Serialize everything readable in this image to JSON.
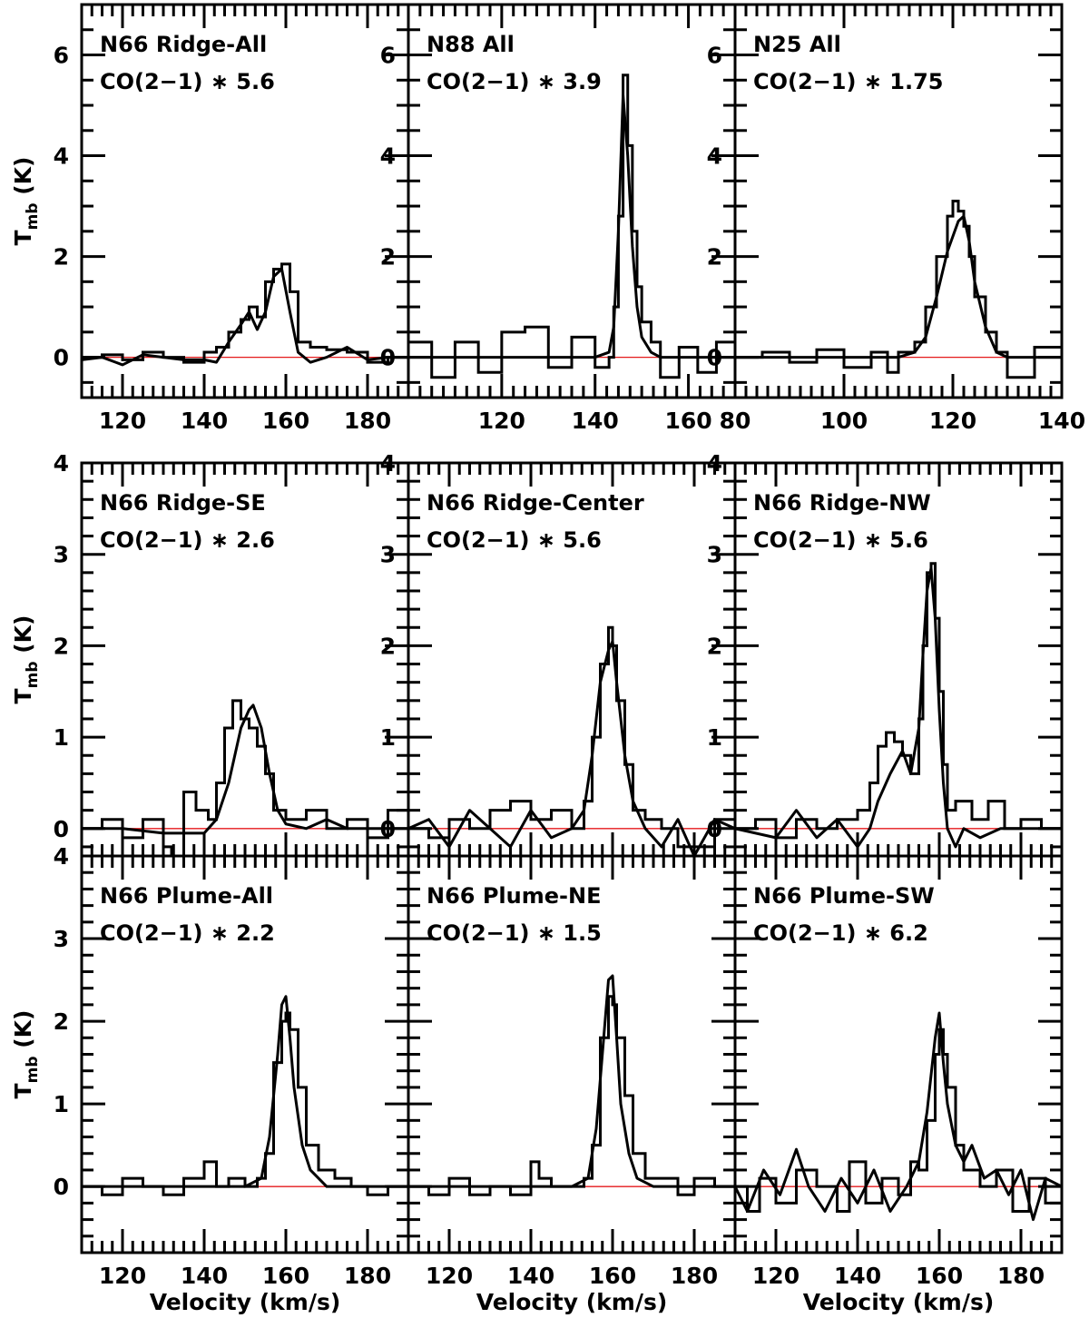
{
  "colors": {
    "spectrum": "#000000",
    "zero_line": "#e41a1c",
    "background": "#ffffff"
  },
  "chart_data": [
    {
      "type": "line",
      "panel": "N66 Ridge-All",
      "title": "N66 Ridge-All",
      "subtitle": "CO(2−1) ∗ 5.6",
      "xlim": [
        110,
        190
      ],
      "ylim": [
        -0.8,
        7.0
      ],
      "xticks": [
        120,
        140,
        160,
        180
      ],
      "yticks": [
        0,
        2,
        4,
        6
      ],
      "xlabel": "",
      "ylabel": "T_mb (K)",
      "series": [
        {
          "style": "histogram",
          "x": [
            110,
            115,
            120,
            125,
            130,
            135,
            140,
            143,
            146,
            149,
            151,
            153,
            155,
            157,
            159,
            161,
            163,
            166,
            170,
            175,
            180,
            185,
            190
          ],
          "values": [
            0.0,
            0.05,
            -0.05,
            0.1,
            0.0,
            -0.1,
            0.1,
            0.2,
            0.5,
            0.75,
            1.0,
            0.8,
            1.5,
            1.75,
            1.85,
            1.3,
            0.3,
            0.2,
            0.15,
            0.1,
            -0.1,
            0.0,
            0.0
          ]
        },
        {
          "style": "smooth",
          "x": [
            110,
            115,
            120,
            125,
            130,
            135,
            140,
            143,
            146,
            149,
            151,
            153,
            155,
            157,
            159,
            161,
            163,
            166,
            170,
            175,
            180,
            185,
            190
          ],
          "values": [
            -0.05,
            0.0,
            -0.15,
            0.05,
            0.0,
            -0.05,
            -0.05,
            -0.1,
            0.3,
            0.65,
            0.9,
            0.55,
            0.9,
            1.6,
            1.75,
            0.9,
            0.1,
            -0.1,
            0.0,
            0.2,
            -0.05,
            0.0,
            0.0
          ]
        }
      ]
    },
    {
      "type": "line",
      "panel": "N88 All",
      "title": "N88 All",
      "subtitle": "CO(2−1) ∗ 3.9",
      "xlim": [
        100,
        170
      ],
      "ylim": [
        -0.8,
        7.0
      ],
      "xticks": [
        120,
        140,
        160
      ],
      "yticks": [
        0,
        2,
        4,
        6
      ],
      "xlabel": "",
      "ylabel": "",
      "series": [
        {
          "style": "histogram",
          "x": [
            100,
            105,
            110,
            115,
            120,
            125,
            130,
            135,
            140,
            143,
            144,
            145,
            146,
            147,
            148,
            149,
            150,
            152,
            154,
            158,
            162,
            166,
            170
          ],
          "values": [
            0.3,
            -0.4,
            0.3,
            -0.3,
            0.5,
            0.6,
            -0.2,
            0.4,
            -0.2,
            0.0,
            1.0,
            2.8,
            5.6,
            4.2,
            2.5,
            1.4,
            0.7,
            0.3,
            -0.4,
            0.2,
            -0.3,
            0.3,
            0.0
          ]
        },
        {
          "style": "smooth",
          "x": [
            100,
            110,
            120,
            130,
            140,
            143,
            144,
            145,
            146,
            147,
            148,
            149,
            150,
            152,
            154,
            160,
            170
          ],
          "values": [
            0.0,
            0.0,
            0.0,
            0.0,
            0.0,
            0.1,
            0.6,
            2.5,
            5.2,
            4.0,
            2.2,
            1.0,
            0.4,
            0.1,
            0.0,
            0.0,
            0.0
          ]
        }
      ]
    },
    {
      "type": "line",
      "panel": "N25 All",
      "title": "N25 All",
      "subtitle": "CO(2−1) ∗ 1.75",
      "xlim": [
        80,
        140
      ],
      "ylim": [
        -0.8,
        7.0
      ],
      "xticks": [
        80,
        100,
        120,
        140
      ],
      "yticks": [
        0,
        2,
        4,
        6
      ],
      "xlabel": "",
      "ylabel": "",
      "series": [
        {
          "style": "histogram",
          "x": [
            80,
            85,
            90,
            95,
            100,
            105,
            108,
            110,
            113,
            115,
            117,
            119,
            120,
            121,
            122,
            123,
            124,
            126,
            128,
            130,
            135,
            140
          ],
          "values": [
            0.0,
            0.1,
            -0.1,
            0.15,
            -0.2,
            0.1,
            -0.3,
            0.1,
            0.3,
            1.0,
            2.0,
            2.8,
            3.1,
            2.9,
            2.6,
            2.0,
            1.2,
            0.5,
            0.1,
            -0.4,
            0.2,
            0.1
          ]
        },
        {
          "style": "smooth",
          "x": [
            80,
            90,
            100,
            110,
            113,
            115,
            117,
            119,
            121,
            122,
            123,
            124,
            126,
            128,
            130,
            135,
            140
          ],
          "values": [
            0.0,
            0.0,
            0.0,
            0.0,
            0.1,
            0.4,
            1.2,
            2.1,
            2.7,
            2.8,
            2.3,
            1.5,
            0.6,
            0.1,
            0.0,
            0.0,
            0.0
          ]
        }
      ]
    },
    {
      "type": "line",
      "panel": "N66 Ridge-SE",
      "title": "N66 Ridge-SE",
      "subtitle": "CO(2−1) ∗ 2.6",
      "xlim": [
        110,
        190
      ],
      "ylim": [
        -0.3,
        4.0
      ],
      "xticks": [],
      "yticks": [
        0,
        1,
        2,
        3,
        4
      ],
      "xlabel": "",
      "ylabel": "T_mb (K)",
      "series": [
        {
          "style": "histogram",
          "x": [
            110,
            115,
            120,
            125,
            130,
            132,
            135,
            138,
            141,
            143,
            145,
            147,
            149,
            151,
            153,
            155,
            157,
            160,
            165,
            170,
            175,
            180,
            185,
            190
          ],
          "values": [
            0.0,
            0.1,
            -0.1,
            0.1,
            -0.2,
            -0.5,
            0.4,
            0.2,
            0.1,
            0.5,
            1.1,
            1.4,
            1.2,
            1.1,
            0.9,
            0.6,
            0.2,
            0.1,
            0.2,
            0.0,
            0.1,
            -0.1,
            0.2,
            0.0
          ]
        },
        {
          "style": "smooth",
          "x": [
            110,
            120,
            130,
            140,
            143,
            146,
            149,
            151,
            152,
            154,
            156,
            158,
            160,
            165,
            170,
            175,
            180,
            185,
            190
          ],
          "values": [
            0.0,
            0.0,
            -0.05,
            -0.05,
            0.1,
            0.5,
            1.1,
            1.3,
            1.35,
            1.1,
            0.6,
            0.2,
            0.05,
            0.0,
            0.1,
            0.0,
            0.0,
            0.0,
            0.0
          ]
        }
      ]
    },
    {
      "type": "line",
      "panel": "N66 Ridge-Center",
      "title": "N66 Ridge-Center",
      "subtitle": "CO(2−1) ∗ 5.6",
      "xlim": [
        110,
        190
      ],
      "ylim": [
        -0.3,
        4.0
      ],
      "xticks": [],
      "yticks": [
        0,
        1,
        2,
        3,
        4
      ],
      "xlabel": "",
      "ylabel": "",
      "series": [
        {
          "style": "histogram",
          "x": [
            110,
            115,
            120,
            125,
            130,
            135,
            140,
            145,
            150,
            153,
            155,
            157,
            159,
            160,
            161,
            163,
            165,
            168,
            172,
            176,
            180,
            185,
            190
          ],
          "values": [
            0.0,
            -0.1,
            0.1,
            0.0,
            0.2,
            0.3,
            0.1,
            0.2,
            0.0,
            0.3,
            1.0,
            1.8,
            2.2,
            2.0,
            1.4,
            0.7,
            0.2,
            0.1,
            0.0,
            -0.2,
            -0.2,
            0.1,
            0.0
          ]
        },
        {
          "style": "smooth",
          "x": [
            110,
            115,
            120,
            125,
            130,
            135,
            140,
            145,
            150,
            153,
            155,
            157,
            159,
            160,
            161,
            163,
            165,
            168,
            172,
            176,
            180,
            185,
            190
          ],
          "values": [
            0.0,
            0.1,
            -0.2,
            0.2,
            0.0,
            -0.2,
            0.2,
            -0.1,
            0.0,
            0.2,
            0.8,
            1.6,
            1.95,
            2.05,
            1.6,
            0.8,
            0.3,
            0.0,
            -0.2,
            0.1,
            -0.3,
            0.1,
            0.0
          ]
        }
      ]
    },
    {
      "type": "line",
      "panel": "N66 Ridge-NW",
      "title": "N66 Ridge-NW",
      "subtitle": "CO(2−1) ∗ 5.6",
      "xlim": [
        110,
        190
      ],
      "ylim": [
        -0.3,
        4.0
      ],
      "xticks": [],
      "yticks": [
        0,
        1,
        2,
        3,
        4
      ],
      "xlabel": "",
      "ylabel": "",
      "series": [
        {
          "style": "histogram",
          "x": [
            110,
            115,
            120,
            125,
            130,
            135,
            140,
            143,
            145,
            147,
            149,
            151,
            153,
            155,
            156,
            157,
            158,
            159,
            160,
            161,
            162,
            164,
            168,
            172,
            176,
            180,
            185,
            190
          ],
          "values": [
            0.0,
            0.1,
            -0.1,
            0.1,
            0.0,
            0.1,
            0.2,
            0.5,
            0.9,
            1.05,
            0.95,
            0.8,
            0.6,
            1.2,
            2.0,
            2.8,
            2.9,
            2.3,
            1.5,
            0.7,
            0.2,
            0.3,
            0.1,
            0.3,
            0.0,
            0.1,
            0.0,
            0.0
          ]
        },
        {
          "style": "smooth",
          "x": [
            110,
            120,
            125,
            130,
            135,
            140,
            143,
            145,
            148,
            151,
            153,
            155,
            156,
            157,
            158,
            159,
            160,
            161,
            162,
            164,
            166,
            170,
            175,
            180,
            190
          ],
          "values": [
            0.0,
            -0.1,
            0.2,
            -0.1,
            0.1,
            -0.2,
            0.0,
            0.3,
            0.6,
            0.85,
            0.6,
            1.1,
            1.9,
            2.6,
            2.85,
            2.3,
            1.3,
            0.5,
            0.0,
            -0.2,
            0.0,
            -0.1,
            0.0,
            0.0,
            0.0
          ]
        }
      ]
    },
    {
      "type": "line",
      "panel": "N66 Plume-All",
      "title": "N66 Plume-All",
      "subtitle": "CO(2−1) ∗ 2.2",
      "xlim": [
        110,
        190
      ],
      "ylim": [
        -0.8,
        4.0
      ],
      "xticks": [
        120,
        140,
        160,
        180
      ],
      "yticks": [
        0,
        1,
        2,
        3,
        4
      ],
      "xlabel": "Velocity (km/s)",
      "ylabel": "T_mb (K)",
      "series": [
        {
          "style": "histogram",
          "x": [
            110,
            115,
            120,
            125,
            130,
            135,
            140,
            143,
            146,
            150,
            153,
            155,
            157,
            159,
            160,
            161,
            163,
            165,
            168,
            172,
            176,
            180,
            185,
            190
          ],
          "values": [
            0.0,
            -0.1,
            0.1,
            0.0,
            -0.1,
            0.1,
            0.3,
            0.0,
            0.1,
            0.0,
            0.1,
            0.4,
            1.5,
            2.0,
            2.1,
            1.9,
            1.2,
            0.5,
            0.2,
            0.1,
            0.0,
            -0.1,
            0.0,
            0.0
          ]
        },
        {
          "style": "smooth",
          "x": [
            110,
            130,
            150,
            154,
            156,
            158,
            159,
            160,
            161,
            162,
            164,
            166,
            170,
            180,
            190
          ],
          "values": [
            0.0,
            0.0,
            0.0,
            0.1,
            0.6,
            1.6,
            2.2,
            2.3,
            1.8,
            1.2,
            0.5,
            0.2,
            0.0,
            0.0,
            0.0
          ]
        }
      ]
    },
    {
      "type": "line",
      "panel": "N66 Plume-NE",
      "title": "N66 Plume-NE",
      "subtitle": "CO(2−1) ∗ 1.5",
      "xlim": [
        110,
        190
      ],
      "ylim": [
        -0.8,
        4.0
      ],
      "xticks": [
        120,
        140,
        160,
        180
      ],
      "yticks": [],
      "xlabel": "Velocity (km/s)",
      "ylabel": "",
      "series": [
        {
          "style": "histogram",
          "x": [
            110,
            115,
            120,
            125,
            130,
            135,
            140,
            142,
            145,
            150,
            153,
            155,
            157,
            159,
            160,
            161,
            163,
            165,
            168,
            172,
            176,
            180,
            185,
            190
          ],
          "values": [
            0.0,
            -0.1,
            0.1,
            -0.1,
            0.0,
            -0.1,
            0.3,
            0.1,
            0.0,
            0.0,
            0.1,
            0.5,
            1.8,
            2.3,
            2.2,
            1.8,
            1.1,
            0.4,
            0.1,
            0.1,
            -0.1,
            0.1,
            0.0,
            0.0
          ]
        },
        {
          "style": "smooth",
          "x": [
            110,
            130,
            150,
            154,
            156,
            158,
            159,
            160,
            161,
            162,
            164,
            166,
            170,
            180,
            190
          ],
          "values": [
            0.0,
            0.0,
            0.0,
            0.1,
            0.7,
            1.9,
            2.5,
            2.55,
            1.8,
            1.0,
            0.4,
            0.1,
            0.0,
            0.0,
            0.0
          ]
        }
      ]
    },
    {
      "type": "line",
      "panel": "N66 Plume-SW",
      "title": "N66 Plume-SW",
      "subtitle": "CO(2−1) ∗ 6.2",
      "xlim": [
        110,
        190
      ],
      "ylim": [
        -0.8,
        4.0
      ],
      "xticks": [
        120,
        140,
        160,
        180
      ],
      "yticks": [],
      "xlabel": "Velocity (km/s)",
      "ylabel": "",
      "series": [
        {
          "style": "histogram",
          "x": [
            110,
            113,
            116,
            120,
            125,
            130,
            135,
            138,
            142,
            146,
            150,
            153,
            155,
            157,
            159,
            160,
            161,
            162,
            164,
            166,
            170,
            174,
            178,
            182,
            186,
            190
          ],
          "values": [
            0.0,
            -0.3,
            0.1,
            -0.2,
            0.2,
            0.0,
            -0.3,
            0.3,
            -0.2,
            0.1,
            -0.1,
            0.3,
            0.2,
            0.8,
            1.6,
            1.9,
            1.6,
            1.2,
            0.5,
            0.2,
            0.0,
            0.2,
            -0.3,
            0.1,
            -0.2,
            0.0
          ]
        },
        {
          "style": "smooth",
          "x": [
            110,
            113,
            117,
            121,
            125,
            128,
            132,
            136,
            140,
            144,
            148,
            152,
            155,
            157,
            159,
            160,
            161,
            162,
            164,
            166,
            168,
            171,
            174,
            177,
            180,
            183,
            186,
            190
          ],
          "values": [
            0.0,
            -0.3,
            0.2,
            -0.1,
            0.45,
            0.0,
            -0.3,
            0.1,
            -0.2,
            0.2,
            -0.3,
            0.0,
            0.3,
            0.9,
            1.8,
            2.1,
            1.5,
            1.0,
            0.5,
            0.3,
            0.5,
            0.1,
            0.2,
            -0.1,
            0.2,
            -0.4,
            0.1,
            0.0
          ]
        }
      ]
    }
  ]
}
